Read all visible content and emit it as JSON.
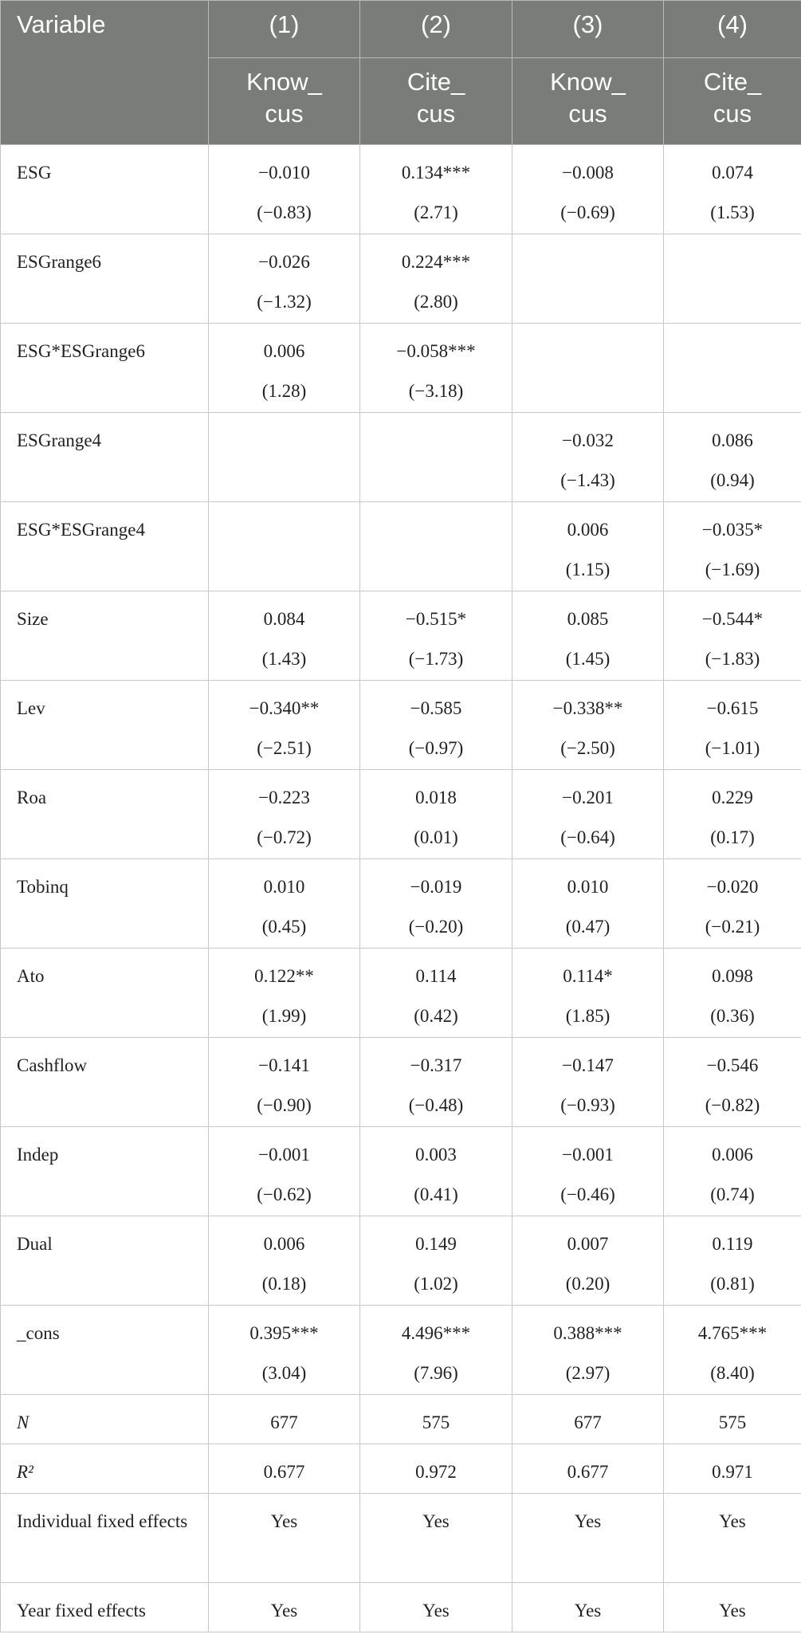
{
  "table": {
    "first_header": "Variable",
    "columns": [
      "(1)",
      "(2)",
      "(3)",
      "(4)"
    ],
    "dep_vars": [
      [
        "Know_",
        "cus"
      ],
      [
        "Cite_",
        "cus"
      ],
      [
        "Know_",
        "cus"
      ],
      [
        "Cite_",
        "cus"
      ]
    ],
    "rows": [
      {
        "label": "ESG",
        "cells": [
          {
            "coef": "−0.010",
            "t": "(−0.83)"
          },
          {
            "coef": "0.134***",
            "t": "(2.71)"
          },
          {
            "coef": "−0.008",
            "t": "(−0.69)"
          },
          {
            "coef": "0.074",
            "t": "(1.53)"
          }
        ]
      },
      {
        "label": "ESGrange6",
        "cells": [
          {
            "coef": "−0.026",
            "t": "(−1.32)"
          },
          {
            "coef": "0.224***",
            "t": "(2.80)"
          },
          null,
          null
        ]
      },
      {
        "label": "ESG*ESGrange6",
        "cells": [
          {
            "coef": "0.006",
            "t": "(1.28)"
          },
          {
            "coef": "−0.058***",
            "t": "(−3.18)"
          },
          null,
          null
        ]
      },
      {
        "label": "ESGrange4",
        "cells": [
          null,
          null,
          {
            "coef": "−0.032",
            "t": "(−1.43)"
          },
          {
            "coef": "0.086",
            "t": "(0.94)"
          }
        ]
      },
      {
        "label": "ESG*ESGrange4",
        "cells": [
          null,
          null,
          {
            "coef": "0.006",
            "t": "(1.15)"
          },
          {
            "coef": "−0.035*",
            "t": "(−1.69)"
          }
        ]
      },
      {
        "label": "Size",
        "cells": [
          {
            "coef": "0.084",
            "t": "(1.43)"
          },
          {
            "coef": "−0.515*",
            "t": "(−1.73)"
          },
          {
            "coef": "0.085",
            "t": "(1.45)"
          },
          {
            "coef": "−0.544*",
            "t": "(−1.83)"
          }
        ]
      },
      {
        "label": "Lev",
        "cells": [
          {
            "coef": "−0.340**",
            "t": "(−2.51)"
          },
          {
            "coef": "−0.585",
            "t": "(−0.97)"
          },
          {
            "coef": "−0.338**",
            "t": "(−2.50)"
          },
          {
            "coef": "−0.615",
            "t": "(−1.01)"
          }
        ]
      },
      {
        "label": "Roa",
        "cells": [
          {
            "coef": "−0.223",
            "t": "(−0.72)"
          },
          {
            "coef": "0.018",
            "t": "(0.01)"
          },
          {
            "coef": "−0.201",
            "t": "(−0.64)"
          },
          {
            "coef": "0.229",
            "t": "(0.17)"
          }
        ]
      },
      {
        "label": "Tobinq",
        "cells": [
          {
            "coef": "0.010",
            "t": "(0.45)"
          },
          {
            "coef": "−0.019",
            "t": "(−0.20)"
          },
          {
            "coef": "0.010",
            "t": "(0.47)"
          },
          {
            "coef": "−0.020",
            "t": "(−0.21)"
          }
        ]
      },
      {
        "label": "Ato",
        "cells": [
          {
            "coef": "0.122**",
            "t": "(1.99)"
          },
          {
            "coef": "0.114",
            "t": "(0.42)"
          },
          {
            "coef": "0.114*",
            "t": "(1.85)"
          },
          {
            "coef": "0.098",
            "t": "(0.36)"
          }
        ]
      },
      {
        "label": "Cashflow",
        "cells": [
          {
            "coef": "−0.141",
            "t": "(−0.90)"
          },
          {
            "coef": "−0.317",
            "t": "(−0.48)"
          },
          {
            "coef": "−0.147",
            "t": "(−0.93)"
          },
          {
            "coef": "−0.546",
            "t": "(−0.82)"
          }
        ]
      },
      {
        "label": "Indep",
        "cells": [
          {
            "coef": "−0.001",
            "t": "(−0.62)"
          },
          {
            "coef": "0.003",
            "t": "(0.41)"
          },
          {
            "coef": "−0.001",
            "t": "(−0.46)"
          },
          {
            "coef": "0.006",
            "t": "(0.74)"
          }
        ]
      },
      {
        "label": "Dual",
        "cells": [
          {
            "coef": "0.006",
            "t": "(0.18)"
          },
          {
            "coef": "0.149",
            "t": "(1.02)"
          },
          {
            "coef": "0.007",
            "t": "(0.20)"
          },
          {
            "coef": "0.119",
            "t": "(0.81)"
          }
        ]
      },
      {
        "label": "_cons",
        "cells": [
          {
            "coef": "0.395***",
            "t": "(3.04)"
          },
          {
            "coef": "4.496***",
            "t": "(7.96)"
          },
          {
            "coef": "0.388***",
            "t": "(2.97)"
          },
          {
            "coef": "4.765***",
            "t": "(8.40)"
          }
        ]
      },
      {
        "label": "N",
        "italic": true,
        "cells": [
          "677",
          "575",
          "677",
          "575"
        ]
      },
      {
        "label": "R²",
        "italic": true,
        "cells": [
          "0.677",
          "0.972",
          "0.677",
          "0.971"
        ]
      },
      {
        "label": "Individual fixed effects",
        "cells": [
          "Yes",
          "Yes",
          "Yes",
          "Yes"
        ],
        "tall": true
      },
      {
        "label": "Year fixed effects",
        "cells": [
          "Yes",
          "Yes",
          "Yes",
          "Yes"
        ]
      }
    ]
  }
}
